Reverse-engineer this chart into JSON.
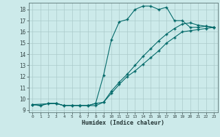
{
  "xlabel": "Humidex (Indice chaleur)",
  "bg_color": "#cceaea",
  "grid_color": "#aacaca",
  "line_color": "#006868",
  "xlim": [
    -0.5,
    23.5
  ],
  "ylim": [
    8.8,
    18.6
  ],
  "yticks": [
    9,
    10,
    11,
    12,
    13,
    14,
    15,
    16,
    17,
    18
  ],
  "xticks": [
    0,
    1,
    2,
    3,
    4,
    5,
    6,
    7,
    8,
    9,
    10,
    11,
    12,
    13,
    14,
    15,
    16,
    17,
    18,
    19,
    20,
    21,
    22,
    23
  ],
  "curve1_x": [
    0,
    1,
    2,
    3,
    4,
    5,
    6,
    7,
    8,
    9,
    10,
    11,
    12,
    13,
    14,
    15,
    16,
    17,
    18,
    19,
    20,
    21,
    22,
    23
  ],
  "curve1_y": [
    9.5,
    9.4,
    9.6,
    9.6,
    9.4,
    9.4,
    9.4,
    9.4,
    9.6,
    12.1,
    15.3,
    16.9,
    17.1,
    18.0,
    18.3,
    18.3,
    18.0,
    18.2,
    17.0,
    17.0,
    16.4,
    16.4,
    16.5,
    16.4
  ],
  "curve2_x": [
    0,
    1,
    2,
    3,
    4,
    5,
    6,
    7,
    8,
    9,
    10,
    11,
    12,
    13,
    14,
    15,
    16,
    17,
    18,
    19,
    20,
    21,
    22,
    23
  ],
  "curve2_y": [
    9.5,
    9.4,
    9.6,
    9.6,
    9.4,
    9.4,
    9.4,
    9.4,
    9.6,
    9.7,
    10.5,
    11.3,
    12.0,
    12.5,
    13.1,
    13.7,
    14.3,
    15.0,
    15.5,
    16.0,
    16.1,
    16.2,
    16.3,
    16.4
  ],
  "curve3_x": [
    0,
    3,
    4,
    5,
    6,
    7,
    8,
    9,
    10,
    11,
    12,
    13,
    14,
    15,
    16,
    17,
    18,
    19,
    20,
    21,
    22,
    23
  ],
  "curve3_y": [
    9.5,
    9.6,
    9.4,
    9.4,
    9.4,
    9.4,
    9.4,
    9.7,
    10.7,
    11.5,
    12.2,
    13.0,
    13.8,
    14.5,
    15.2,
    15.8,
    16.3,
    16.7,
    16.8,
    16.6,
    16.5,
    16.4
  ]
}
